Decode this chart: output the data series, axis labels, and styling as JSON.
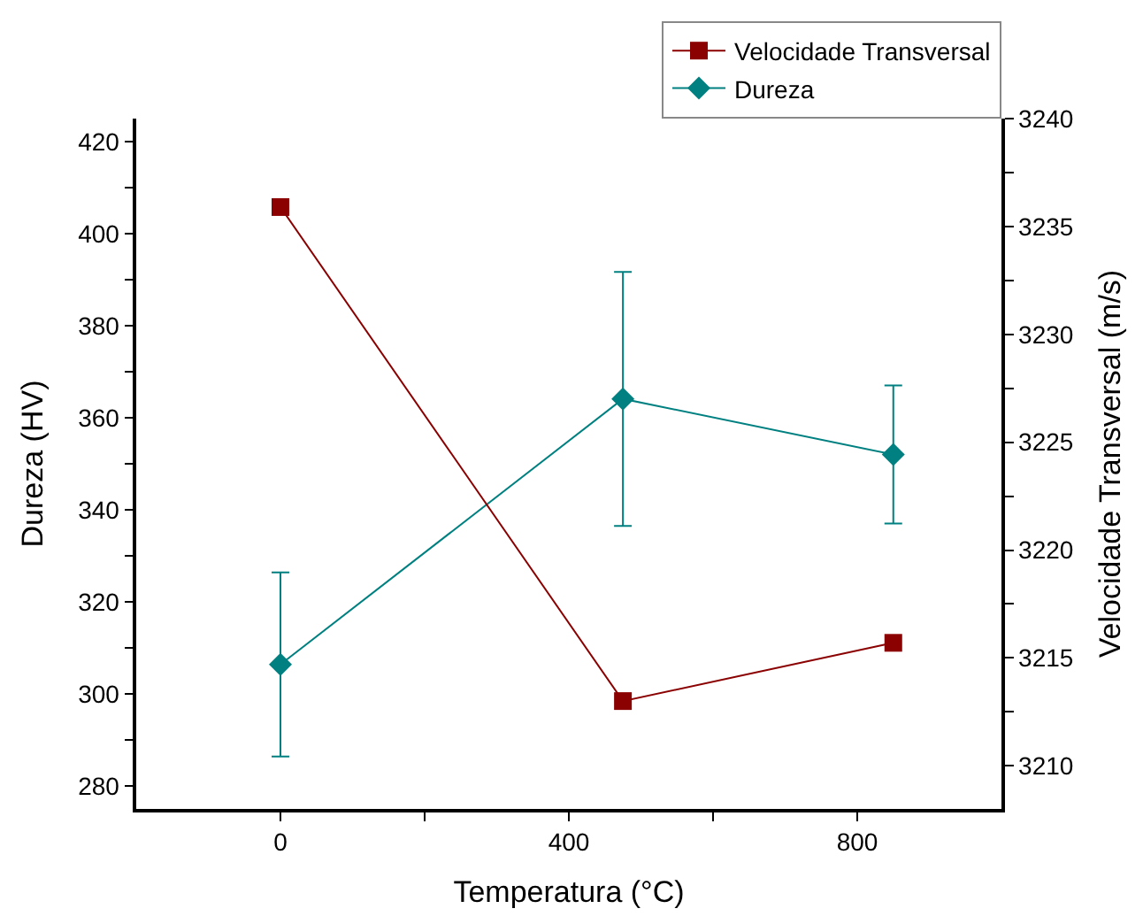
{
  "chart_data": {
    "type": "line",
    "xlabel": "Temperatura (°C)",
    "ylabel": "Dureza (HV)",
    "y2label": "Velocidade Transversal (m/s)",
    "x": [
      0,
      475,
      850
    ],
    "series": [
      {
        "name": "Velocidade Transversal",
        "color": "#8b0000",
        "marker": "square",
        "axis": "y2",
        "values": [
          3235.9,
          3213.0,
          3215.7
        ]
      },
      {
        "name": "Dureza",
        "color": "#008080",
        "marker": "diamond",
        "values": [
          306.4,
          364.1,
          352
        ],
        "errors": [
          20,
          27.6,
          15
        ]
      }
    ],
    "xlim": [
      -200,
      1000
    ],
    "xticks": [
      0,
      {
        "value": 200,
        "label": null
      },
      400,
      {
        "value": 600,
        "label": null
      },
      800
    ],
    "ylim": [
      275,
      425
    ],
    "yticks": [
      280,
      {
        "value": 290,
        "label": null
      },
      300,
      {
        "value": 310,
        "label": null
      },
      320,
      {
        "value": 330,
        "label": null
      },
      340,
      {
        "value": 350,
        "label": null
      },
      360,
      {
        "value": 370,
        "label": null
      },
      380,
      {
        "value": 390,
        "label": null
      },
      400,
      {
        "value": 410,
        "label": null
      },
      420
    ],
    "y2lim": [
      3208,
      3240
    ],
    "y2ticks": [
      3210,
      {
        "value": 3212.5,
        "label": null
      },
      3215,
      {
        "value": 3217.5,
        "label": null
      },
      3220,
      {
        "value": 3222.5,
        "label": null
      },
      3225,
      {
        "value": 3227.5,
        "label": null
      },
      3230,
      {
        "value": 3232.5,
        "label": null
      },
      3235,
      {
        "value": 3237.5,
        "label": null
      },
      3240
    ],
    "legend": "top right",
    "line_style": "solid"
  }
}
